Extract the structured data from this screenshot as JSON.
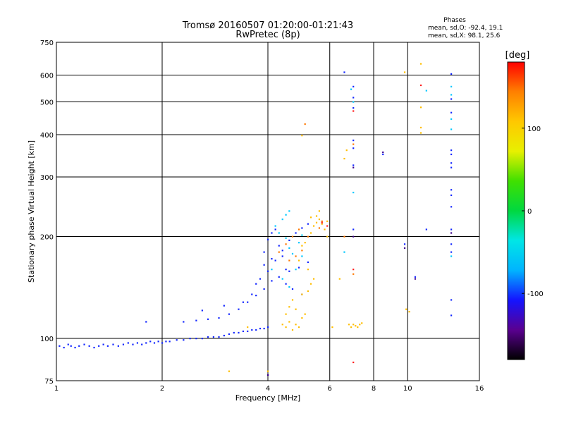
{
  "chart_data": {
    "type": "scatter",
    "title": "Tromsø 20160507 01:20:00-01:21:43",
    "subtitle": "RwPretec (8p)",
    "xlabel": "Frequency [MHz]",
    "ylabel": "Stationary phase Virtual Height [km]",
    "x_scale": "log2",
    "y_scale": "log",
    "xlim": [
      1,
      16
    ],
    "ylim": [
      75,
      750
    ],
    "x_ticks": [
      "1",
      "2",
      "4",
      "6",
      "8",
      "10",
      "16"
    ],
    "x_tick_values": [
      1,
      2,
      4,
      6,
      8,
      10,
      16
    ],
    "y_ticks": [
      "75",
      "100",
      "200",
      "300",
      "400",
      "500",
      "600",
      "750"
    ],
    "y_tick_values": [
      75,
      100,
      200,
      300,
      400,
      500,
      600,
      750
    ],
    "grid": true,
    "phase_stats": {
      "title": "Phases",
      "line_o": "mean, sd,O: -92.4, 19.1",
      "line_x": "mean, sd,X:  98.1, 25.6"
    },
    "colorbar": {
      "label": "[deg]",
      "range": [
        -180,
        180
      ],
      "ticks": [
        "100",
        "0",
        "-100"
      ],
      "tick_values": [
        100,
        0,
        -100
      ],
      "stops": [
        "#000000",
        "#5a0090",
        "#1414ff",
        "#00b4ff",
        "#00e6e6",
        "#00d840",
        "#40e000",
        "#e8f000",
        "#ffc800",
        "#ff8000",
        "#ff0000"
      ]
    },
    "series": [
      {
        "points": [
          [
            1.02,
            95
          ],
          [
            1.05,
            94
          ],
          [
            1.08,
            96
          ],
          [
            1.1,
            95
          ],
          [
            1.13,
            94
          ],
          [
            1.16,
            95
          ],
          [
            1.2,
            96
          ],
          [
            1.24,
            95
          ],
          [
            1.28,
            94
          ],
          [
            1.32,
            95
          ],
          [
            1.36,
            96
          ],
          [
            1.4,
            95
          ],
          [
            1.45,
            96
          ],
          [
            1.5,
            95
          ],
          [
            1.55,
            96
          ],
          [
            1.6,
            97
          ],
          [
            1.65,
            96
          ],
          [
            1.7,
            97
          ],
          [
            1.75,
            96
          ],
          [
            1.8,
            97
          ],
          [
            1.85,
            98
          ],
          [
            1.9,
            97
          ],
          [
            1.95,
            98
          ],
          [
            2.0,
            97
          ],
          [
            2.05,
            98
          ],
          [
            2.1,
            98
          ],
          [
            2.2,
            99
          ],
          [
            2.3,
            99
          ],
          [
            2.4,
            100
          ],
          [
            2.5,
            100
          ],
          [
            2.6,
            100
          ],
          [
            2.7,
            101
          ],
          [
            2.8,
            101
          ],
          [
            2.9,
            101
          ],
          [
            3.0,
            102
          ],
          [
            3.1,
            103
          ],
          [
            3.2,
            104
          ],
          [
            3.3,
            104
          ],
          [
            3.4,
            105
          ],
          [
            3.5,
            105
          ],
          [
            3.6,
            106
          ],
          [
            3.7,
            106
          ],
          [
            3.8,
            107
          ],
          [
            3.9,
            107
          ],
          [
            4.0,
            108
          ],
          [
            2.3,
            112
          ],
          [
            2.5,
            113
          ],
          [
            2.7,
            114
          ],
          [
            2.9,
            115
          ],
          [
            3.1,
            118
          ],
          [
            3.3,
            122
          ],
          [
            3.5,
            128
          ],
          [
            3.7,
            134
          ],
          [
            3.9,
            140
          ],
          [
            4.1,
            148
          ],
          [
            4.3,
            152
          ],
          [
            4.6,
            158
          ],
          [
            4.9,
            162
          ],
          [
            5.2,
            168
          ],
          [
            3.8,
            150
          ],
          [
            4.0,
            158
          ],
          [
            4.2,
            170
          ],
          [
            4.4,
            182
          ],
          [
            4.6,
            195
          ],
          [
            4.8,
            205
          ],
          [
            5.0,
            212
          ],
          [
            5.2,
            218
          ],
          [
            3.9,
            180
          ],
          [
            4.0,
            196
          ],
          [
            4.1,
            205
          ],
          [
            4.2,
            210
          ],
          [
            4.3,
            188
          ],
          [
            4.4,
            175
          ],
          [
            4.5,
            160
          ],
          [
            1.8,
            112
          ],
          [
            2.6,
            121
          ],
          [
            3.0,
            125
          ],
          [
            3.4,
            128
          ],
          [
            3.6,
            135
          ],
          [
            3.7,
            145
          ],
          [
            3.9,
            165
          ],
          [
            4.1,
            172
          ],
          [
            4.5,
            145
          ],
          [
            4.7,
            140
          ],
          [
            5.0,
            135
          ],
          [
            6.6,
            612
          ],
          [
            7.0,
            555
          ],
          [
            7.0,
            515
          ],
          [
            7.0,
            480
          ],
          [
            7.0,
            385
          ],
          [
            7.0,
            365
          ],
          [
            7.0,
            325
          ],
          [
            7.0,
            210
          ],
          [
            8.5,
            350
          ],
          [
            9.8,
            190
          ],
          [
            10.5,
            152
          ],
          [
            11.3,
            210
          ],
          [
            13.3,
            605
          ],
          [
            13.3,
            510
          ],
          [
            13.3,
            465
          ],
          [
            13.3,
            360
          ],
          [
            13.3,
            350
          ],
          [
            13.3,
            330
          ],
          [
            13.3,
            320
          ],
          [
            13.3,
            275
          ],
          [
            13.3,
            265
          ],
          [
            13.3,
            245
          ],
          [
            13.3,
            210
          ],
          [
            13.3,
            190
          ],
          [
            13.3,
            180
          ],
          [
            13.3,
            130
          ],
          [
            13.3,
            117
          ]
        ],
        "color": "#1428ff"
      },
      {
        "points": [
          [
            4.2,
            215
          ],
          [
            4.4,
            225
          ],
          [
            4.5,
            232
          ],
          [
            4.6,
            238
          ],
          [
            4.3,
            205
          ],
          [
            4.5,
            198
          ],
          [
            4.6,
            185
          ],
          [
            4.7,
            178
          ],
          [
            4.9,
            192
          ],
          [
            5.0,
            202
          ],
          [
            4.1,
            160
          ],
          [
            4.4,
            150
          ],
          [
            4.6,
            142
          ],
          [
            4.8,
            160
          ],
          [
            5.0,
            175
          ],
          [
            6.9,
            545
          ],
          [
            7.0,
            500
          ],
          [
            7.0,
            270
          ],
          [
            11.3,
            540
          ],
          [
            13.3,
            555
          ],
          [
            13.3,
            525
          ],
          [
            13.3,
            445
          ],
          [
            13.3,
            415
          ],
          [
            13.3,
            175
          ],
          [
            6.6,
            180
          ]
        ],
        "color": "#00c8ff"
      },
      {
        "points": [
          [
            4.4,
            110
          ],
          [
            4.5,
            108
          ],
          [
            4.6,
            112
          ],
          [
            4.7,
            106
          ],
          [
            4.8,
            110
          ],
          [
            4.9,
            108
          ],
          [
            4.5,
            118
          ],
          [
            4.6,
            124
          ],
          [
            4.7,
            130
          ],
          [
            4.8,
            122
          ],
          [
            5.0,
            115
          ],
          [
            5.1,
            118
          ],
          [
            5.0,
            135
          ],
          [
            5.2,
            138
          ],
          [
            5.3,
            145
          ],
          [
            5.4,
            150
          ],
          [
            5.2,
            160
          ],
          [
            4.9,
            170
          ],
          [
            5.0,
            188
          ],
          [
            5.1,
            192
          ],
          [
            5.3,
            205
          ],
          [
            5.4,
            215
          ],
          [
            5.5,
            220
          ],
          [
            5.6,
            225
          ],
          [
            5.7,
            218
          ],
          [
            5.8,
            210
          ],
          [
            5.9,
            200
          ],
          [
            5.5,
            230
          ],
          [
            5.6,
            238
          ],
          [
            5.9,
            222
          ],
          [
            5.3,
            228
          ],
          [
            5.0,
            398
          ],
          [
            6.8,
            110
          ],
          [
            6.9,
            108
          ],
          [
            7.0,
            110
          ],
          [
            7.1,
            109
          ],
          [
            7.2,
            108
          ],
          [
            7.3,
            110
          ],
          [
            7.4,
            111
          ],
          [
            6.7,
            360
          ],
          [
            6.6,
            340
          ],
          [
            6.1,
            108
          ],
          [
            6.4,
            150
          ],
          [
            9.8,
            612
          ],
          [
            10.9,
            648
          ],
          [
            10.9,
            482
          ],
          [
            10.9,
            420
          ],
          [
            10.9,
            405
          ],
          [
            9.9,
            122
          ],
          [
            10.1,
            120
          ],
          [
            3.5,
            108
          ],
          [
            4.0,
            80
          ],
          [
            3.1,
            80
          ]
        ],
        "color": "#ffbe00"
      },
      {
        "points": [
          [
            4.3,
            180
          ],
          [
            4.5,
            190
          ],
          [
            4.7,
            200
          ],
          [
            4.9,
            210
          ],
          [
            5.0,
            182
          ],
          [
            5.2,
            200
          ],
          [
            5.6,
            212
          ],
          [
            5.7,
            222
          ],
          [
            4.6,
            170
          ],
          [
            4.8,
            175
          ],
          [
            7.0,
            155
          ],
          [
            5.1,
            430
          ],
          [
            7.0,
            375
          ],
          [
            6.6,
            200
          ]
        ],
        "color": "#ff7800"
      },
      {
        "points": [
          [
            5.7,
            220
          ],
          [
            5.9,
            215
          ],
          [
            7.0,
            160
          ],
          [
            7.0,
            85
          ],
          [
            10.9,
            560
          ],
          [
            7.0,
            470
          ]
        ],
        "color": "#ff1e1e"
      },
      {
        "points": [
          [
            7.0,
            320
          ],
          [
            7.0,
            200
          ],
          [
            8.5,
            355
          ],
          [
            9.8,
            185
          ],
          [
            10.5,
            150
          ],
          [
            13.3,
            205
          ],
          [
            4.0,
            78
          ]
        ],
        "color": "#3c008c"
      }
    ]
  }
}
